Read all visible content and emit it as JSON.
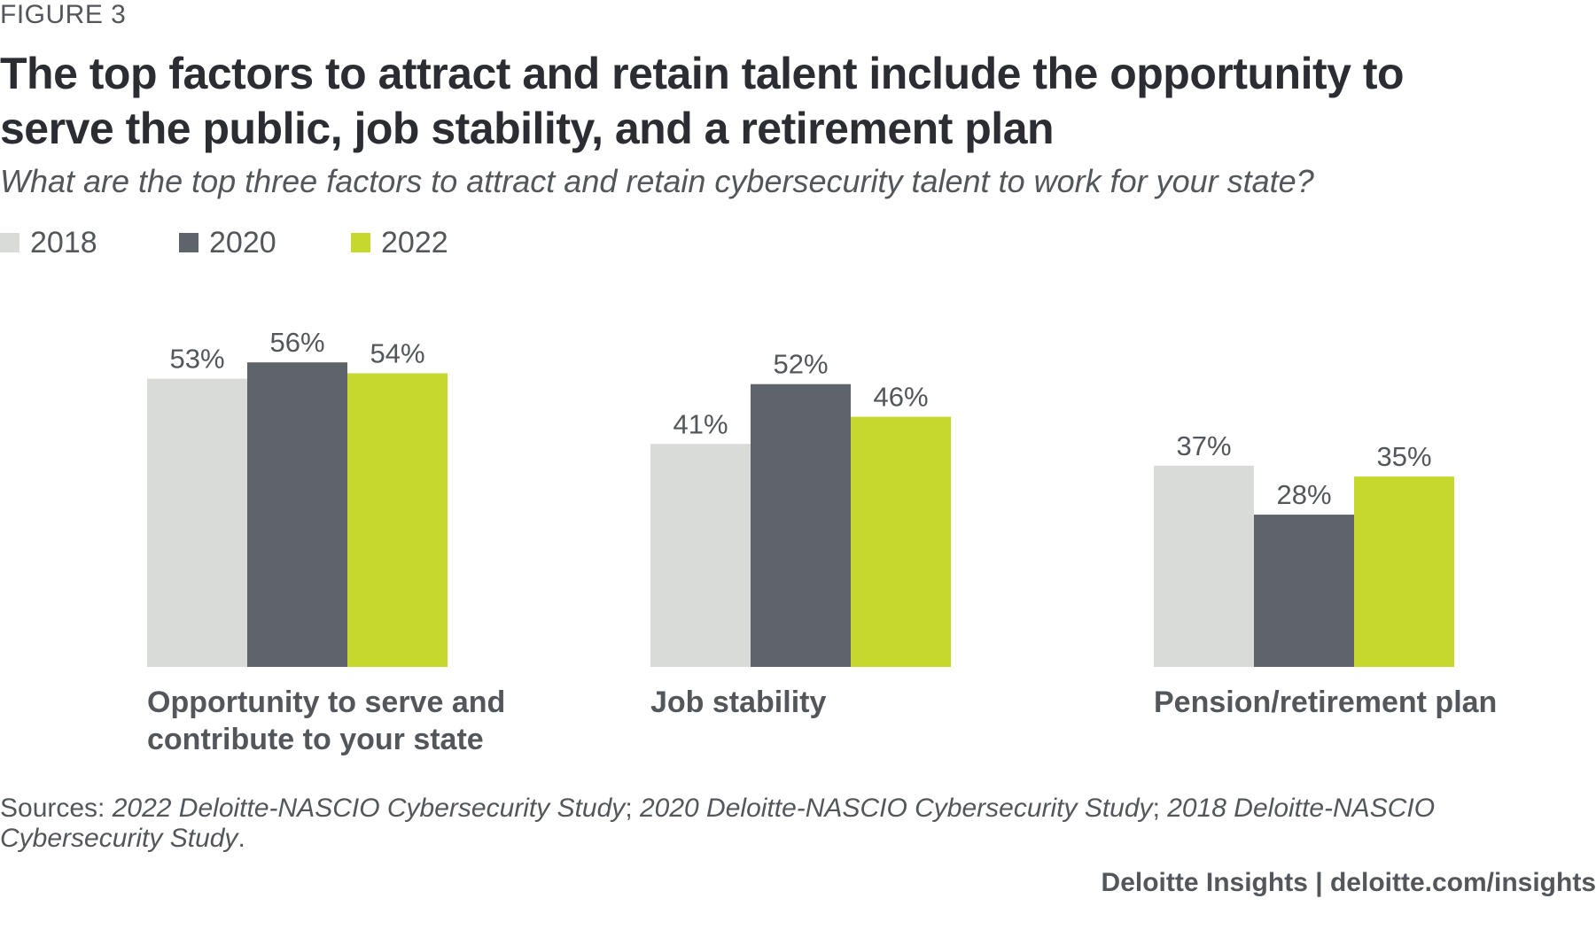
{
  "figure_label": "FIGURE 3",
  "title": "The top factors to attract and retain talent include the opportunity to serve the public, job stability, and a retirement plan",
  "subtitle": "What are the top three factors to attract and retain cybersecurity talent to work for your state?",
  "legend": [
    {
      "label": "2018",
      "color": "#d9dbd8"
    },
    {
      "label": "2020",
      "color": "#5f636a"
    },
    {
      "label": "2022",
      "color": "#c4d82e"
    }
  ],
  "chart_data": {
    "type": "bar",
    "title": "",
    "xlabel": "",
    "ylabel": "",
    "ylim": [
      0,
      60
    ],
    "categories": [
      [
        "Opportunity to serve and",
        "contribute to your state"
      ],
      [
        "Job stability"
      ],
      [
        "Pension/retirement plan"
      ]
    ],
    "series": [
      {
        "name": "2018",
        "color": "#d9dbd8",
        "values": [
          53,
          41,
          37
        ],
        "labels": [
          "53%",
          "41%",
          "37%"
        ]
      },
      {
        "name": "2020",
        "color": "#5f636a",
        "values": [
          56,
          52,
          28
        ],
        "labels": [
          "56%",
          "52%",
          "28%"
        ]
      },
      {
        "name": "2022",
        "color": "#c4d82e",
        "values": [
          54,
          46,
          35
        ],
        "labels": [
          "54%",
          "46%",
          "35%"
        ]
      }
    ]
  },
  "sources": {
    "prefix": "Sources: ",
    "study_2022": "2022 Deloitte-NASCIO Cybersecurity Study",
    "sep1": "; ",
    "study_2020": "2020 Deloitte-NASCIO Cybersecurity Study",
    "sep2": "; ",
    "study_2018": "2018 Deloitte-NASCIO Cybersecurity Study",
    "suffix": "."
  },
  "footer": {
    "brand": "Deloitte Insights",
    "separator": " | ",
    "url": "deloitte.com/insights"
  }
}
